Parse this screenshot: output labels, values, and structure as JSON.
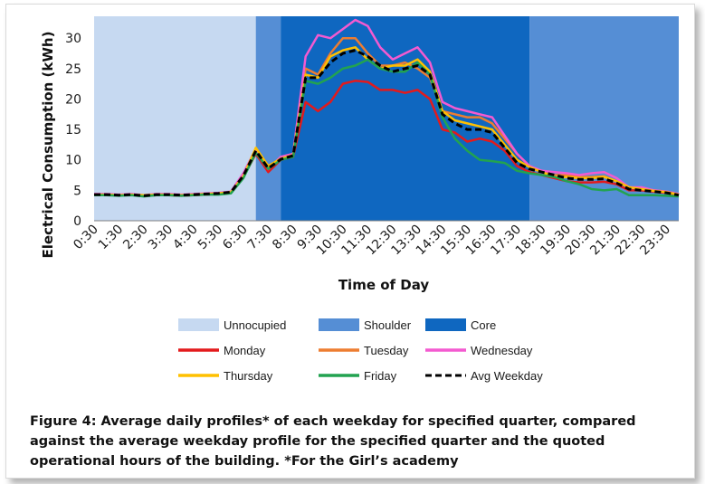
{
  "caption": "Figure 4: Average daily profiles* of each weekday for specified quarter, compared against the average weekday profile for the specified quarter and the quoted operational hours of the building.  *For the Girl’s academy",
  "chart_data": {
    "type": "line",
    "xlabel": "Time of Day",
    "ylabel": "Electrical Consumption (kWh)",
    "ylim": [
      0,
      33
    ],
    "yticks": [
      0,
      5,
      10,
      15,
      20,
      25,
      30
    ],
    "grid": false,
    "legend_position": "bottom",
    "x": [
      "0:30",
      "1:00",
      "1:30",
      "2:00",
      "2:30",
      "3:00",
      "3:30",
      "4:00",
      "4:30",
      "5:00",
      "5:30",
      "6:00",
      "6:30",
      "7:00",
      "7:30",
      "8:00",
      "8:30",
      "9:00",
      "9:30",
      "10:00",
      "10:30",
      "11:00",
      "11:30",
      "12:00",
      "12:30",
      "13:00",
      "13:30",
      "14:00",
      "14:30",
      "15:00",
      "15:30",
      "16:00",
      "16:30",
      "17:00",
      "17:30",
      "18:00",
      "18:30",
      "19:00",
      "19:30",
      "20:00",
      "20:30",
      "21:00",
      "21:30",
      "22:00",
      "22:30",
      "23:00",
      "23:30",
      "0:00"
    ],
    "x_tick_labels": [
      "0:30",
      "1:30",
      "2:30",
      "3:30",
      "4:30",
      "5:30",
      "6:30",
      "7:30",
      "8:30",
      "9:30",
      "10:30",
      "11:30",
      "12:30",
      "13:30",
      "14:30",
      "15:30",
      "16:30",
      "17:30",
      "18:30",
      "19:30",
      "20:30",
      "21:30",
      "22:30",
      "23:30"
    ],
    "bands": [
      {
        "name": "Unnocupied",
        "from": "0:30",
        "to": "7:00",
        "color": "#c6d9f1"
      },
      {
        "name": "Shoulder",
        "from": "7:00",
        "to": "8:00",
        "color": "#558ed5"
      },
      {
        "name": "Core",
        "from": "8:00",
        "to": "18:00",
        "color": "#0f67c0"
      },
      {
        "name": "Shoulder",
        "from": "18:00",
        "to": "0:00",
        "color": "#558ed5"
      }
    ],
    "band_legend": [
      {
        "name": "Unnocupied",
        "color": "#c6d9f1"
      },
      {
        "name": "Shoulder",
        "color": "#558ed5"
      },
      {
        "name": "Core",
        "color": "#0f67c0"
      }
    ],
    "series": [
      {
        "name": "Monday",
        "color": "#e31a1c",
        "dashed": false,
        "values": [
          4.2,
          4.3,
          4.2,
          4.3,
          4.1,
          4.2,
          4.2,
          4.1,
          4.2,
          4.3,
          4.4,
          4.6,
          7.2,
          11.0,
          8.0,
          10.0,
          10.5,
          19.5,
          18.0,
          19.5,
          22.5,
          23.0,
          22.8,
          21.5,
          21.5,
          21.0,
          21.5,
          20.0,
          15.0,
          14.5,
          13.0,
          13.5,
          13.0,
          11.5,
          9.0,
          8.0,
          7.5,
          7.0,
          6.5,
          6.3,
          6.3,
          6.4,
          6.0,
          5.0,
          5.0,
          4.8,
          4.6,
          4.3
        ]
      },
      {
        "name": "Tuesday",
        "color": "#ed7d31",
        "dashed": false,
        "values": [
          4.3,
          4.3,
          4.2,
          4.3,
          4.2,
          4.3,
          4.3,
          4.2,
          4.3,
          4.4,
          4.5,
          4.7,
          7.5,
          11.5,
          9.0,
          10.0,
          10.8,
          25.0,
          24.0,
          27.5,
          30.0,
          30.0,
          27.5,
          25.5,
          25.5,
          26.0,
          25.0,
          23.5,
          18.0,
          17.5,
          17.0,
          17.0,
          16.0,
          13.5,
          11.0,
          9.0,
          8.0,
          7.5,
          7.5,
          7.2,
          7.2,
          7.3,
          6.5,
          5.5,
          5.3,
          5.0,
          4.8,
          4.3
        ]
      },
      {
        "name": "Wednesday",
        "color": "#f45ad0",
        "dashed": false,
        "values": [
          4.4,
          4.4,
          4.3,
          4.4,
          4.2,
          4.4,
          4.4,
          4.3,
          4.4,
          4.5,
          4.6,
          4.8,
          7.8,
          11.8,
          8.5,
          10.5,
          11.0,
          27.0,
          30.5,
          30.0,
          31.5,
          33.0,
          32.0,
          28.5,
          26.5,
          27.5,
          28.5,
          26.0,
          19.5,
          18.5,
          18.0,
          17.5,
          17.0,
          14.0,
          11.0,
          9.0,
          8.2,
          8.0,
          7.8,
          7.5,
          7.8,
          8.0,
          7.0,
          5.5,
          5.5,
          5.0,
          4.8,
          4.4
        ]
      },
      {
        "name": "Thursday",
        "color": "#ffc000",
        "dashed": false,
        "values": [
          4.3,
          4.3,
          4.2,
          4.3,
          4.2,
          4.3,
          4.3,
          4.2,
          4.3,
          4.4,
          4.5,
          4.7,
          7.3,
          12.0,
          9.0,
          10.2,
          10.8,
          24.0,
          23.5,
          27.0,
          28.0,
          28.5,
          26.5,
          25.0,
          25.5,
          25.5,
          26.5,
          24.5,
          18.0,
          16.5,
          16.0,
          15.5,
          15.0,
          12.5,
          10.0,
          8.8,
          8.0,
          7.2,
          7.2,
          7.0,
          7.0,
          7.2,
          6.5,
          5.5,
          5.2,
          4.9,
          4.7,
          4.3
        ]
      },
      {
        "name": "Friday",
        "color": "#22a350",
        "dashed": false,
        "values": [
          4.2,
          4.2,
          4.1,
          4.2,
          4.0,
          4.2,
          4.2,
          4.1,
          4.2,
          4.3,
          4.3,
          4.5,
          7.0,
          11.2,
          8.5,
          10.0,
          10.5,
          23.0,
          22.5,
          23.5,
          25.0,
          25.5,
          26.5,
          25.0,
          24.5,
          24.5,
          26.0,
          24.0,
          17.0,
          13.5,
          11.5,
          10.0,
          9.8,
          9.5,
          8.2,
          7.8,
          7.5,
          7.2,
          6.5,
          6.0,
          5.2,
          5.0,
          5.2,
          4.2,
          4.2,
          4.2,
          4.1,
          4.0
        ]
      },
      {
        "name": "Avg Weekday",
        "color": "#000000",
        "dashed": true,
        "values": [
          4.3,
          4.3,
          4.2,
          4.3,
          4.1,
          4.3,
          4.3,
          4.2,
          4.3,
          4.4,
          4.5,
          4.7,
          7.4,
          11.5,
          8.6,
          10.1,
          10.7,
          23.5,
          23.5,
          26.0,
          27.5,
          28.0,
          27.0,
          25.5,
          24.5,
          25.0,
          25.5,
          24.0,
          17.5,
          16.0,
          15.0,
          15.0,
          14.5,
          12.0,
          9.5,
          8.5,
          8.0,
          7.5,
          7.0,
          6.8,
          6.8,
          6.9,
          6.2,
          5.2,
          5.0,
          4.8,
          4.6,
          4.2
        ]
      }
    ]
  }
}
